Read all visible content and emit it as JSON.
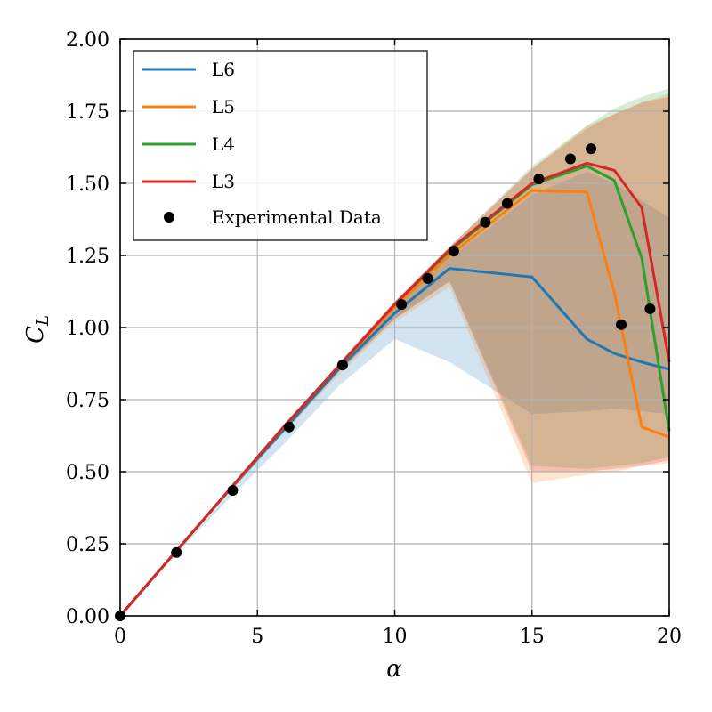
{
  "chart_data": {
    "type": "line",
    "xlabel": "α",
    "ylabel": "C",
    "ylabel_sub": "L",
    "xlim": [
      0,
      20
    ],
    "ylim": [
      0,
      2.0
    ],
    "x_ticks": [
      0,
      5,
      10,
      15,
      20
    ],
    "x_tick_labels": [
      "0",
      "5",
      "10",
      "15",
      "20"
    ],
    "y_ticks": [
      0,
      0.25,
      0.5,
      0.75,
      1.0,
      1.25,
      1.5,
      1.75,
      2.0
    ],
    "y_tick_labels": [
      "0.00",
      "0.25",
      "0.50",
      "0.75",
      "1.00",
      "1.25",
      "1.50",
      "1.75",
      "2.00"
    ],
    "grid": true,
    "legend_position": "top-left",
    "series": [
      {
        "name": "L6",
        "color": "#1f77b4",
        "x": [
          0,
          2,
          4,
          6,
          8,
          10,
          12,
          15,
          17,
          18,
          19,
          20
        ],
        "y": [
          0,
          0.22,
          0.44,
          0.65,
          0.86,
          1.05,
          1.205,
          1.175,
          0.96,
          0.91,
          0.88,
          0.855
        ],
        "band_upper": [
          0,
          0.22,
          0.44,
          0.66,
          0.87,
          1.07,
          1.24,
          1.46,
          1.54,
          1.5,
          1.44,
          1.38
        ],
        "band_lower": [
          0,
          0.21,
          0.41,
          0.6,
          0.8,
          0.96,
          0.88,
          0.7,
          0.71,
          0.72,
          0.71,
          0.7
        ]
      },
      {
        "name": "L5",
        "color": "#ff7f0e",
        "x": [
          0,
          2,
          4,
          6,
          8,
          10,
          12,
          15,
          17,
          18,
          19,
          20
        ],
        "y": [
          0,
          0.22,
          0.44,
          0.66,
          0.87,
          1.07,
          1.25,
          1.475,
          1.47,
          1.12,
          0.655,
          0.62
        ],
        "band_upper": [
          0,
          0.22,
          0.44,
          0.66,
          0.88,
          1.09,
          1.28,
          1.55,
          1.7,
          1.74,
          1.78,
          1.81
        ],
        "band_lower": [
          0,
          0.22,
          0.43,
          0.64,
          0.84,
          1.02,
          1.14,
          0.46,
          0.49,
          0.5,
          0.52,
          0.53
        ]
      },
      {
        "name": "L4",
        "color": "#2ca02c",
        "x": [
          0,
          2,
          4,
          6,
          8,
          10,
          12,
          15,
          17,
          18,
          19,
          20
        ],
        "y": [
          0,
          0.22,
          0.44,
          0.66,
          0.87,
          1.08,
          1.265,
          1.495,
          1.56,
          1.51,
          1.24,
          0.64
        ],
        "band_upper": [
          0,
          0.22,
          0.44,
          0.66,
          0.88,
          1.09,
          1.28,
          1.56,
          1.7,
          1.76,
          1.8,
          1.83
        ],
        "band_lower": [
          0,
          0.22,
          0.43,
          0.64,
          0.85,
          1.03,
          1.16,
          0.52,
          0.51,
          0.52,
          0.53,
          0.55
        ]
      },
      {
        "name": "L3",
        "color": "#d62728",
        "x": [
          0,
          2,
          4,
          6,
          8,
          10,
          12,
          15,
          17,
          18,
          19,
          20
        ],
        "y": [
          0,
          0.22,
          0.44,
          0.66,
          0.87,
          1.08,
          1.27,
          1.5,
          1.57,
          1.545,
          1.415,
          0.88
        ],
        "band_upper": [
          0,
          0.22,
          0.44,
          0.66,
          0.88,
          1.09,
          1.28,
          1.55,
          1.69,
          1.74,
          1.78,
          1.8
        ],
        "band_lower": [
          0,
          0.22,
          0.43,
          0.64,
          0.85,
          1.03,
          1.16,
          0.5,
          0.5,
          0.51,
          0.52,
          0.54
        ]
      }
    ],
    "scatter": {
      "name": "Experimental Data",
      "color": "#000000",
      "x": [
        0,
        2.05,
        4.1,
        6.15,
        8.1,
        10.25,
        11.2,
        12.15,
        13.3,
        14.1,
        15.25,
        16.4,
        17.15,
        18.25,
        19.3
      ],
      "y": [
        0,
        0.22,
        0.435,
        0.655,
        0.87,
        1.08,
        1.17,
        1.265,
        1.365,
        1.43,
        1.515,
        1.585,
        1.62,
        1.01,
        1.065
      ]
    }
  }
}
